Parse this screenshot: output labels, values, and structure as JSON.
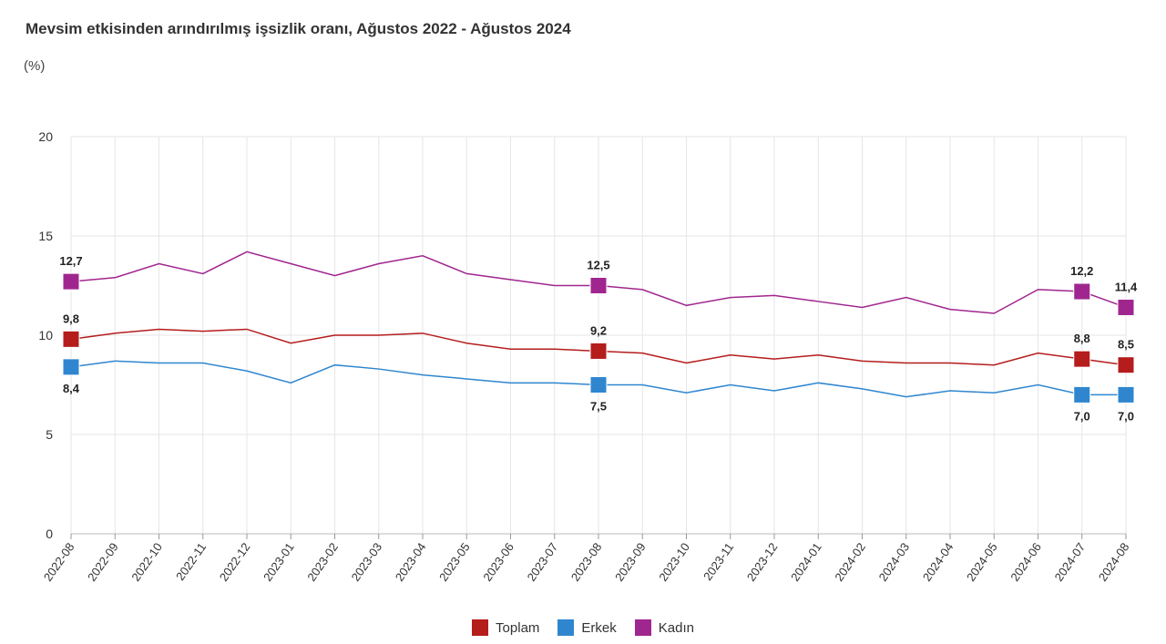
{
  "chart_data": {
    "type": "line",
    "title": "Mevsim etkisinden arındırılmış işsizlik oranı, Ağustos 2022 - Ağustos 2024",
    "subtitle": "(%)",
    "xlabel": "",
    "ylabel": "",
    "ylim": [
      0,
      20
    ],
    "yticks": [
      "0",
      "5",
      "10",
      "15",
      "20"
    ],
    "grid": true,
    "legend_position": "bottom",
    "categories": [
      "2022-08",
      "2022-09",
      "2022-10",
      "2022-11",
      "2022-12",
      "2023-01",
      "2023-02",
      "2023-03",
      "2023-04",
      "2023-05",
      "2023-06",
      "2023-07",
      "2023-08",
      "2023-09",
      "2023-10",
      "2023-11",
      "2023-12",
      "2024-01",
      "2024-02",
      "2024-03",
      "2024-04",
      "2024-05",
      "2024-06",
      "2024-07",
      "2024-08"
    ],
    "series": [
      {
        "name": "Toplam",
        "color": "#b51c1c",
        "values": [
          9.8,
          10.1,
          10.3,
          10.2,
          10.3,
          9.6,
          10.0,
          10.0,
          10.1,
          9.6,
          9.3,
          9.3,
          9.2,
          9.1,
          8.6,
          9.0,
          8.8,
          9.0,
          8.7,
          8.6,
          8.6,
          8.5,
          9.1,
          8.8,
          8.5
        ],
        "labeled_points": [
          {
            "index": 0,
            "label": "9,8"
          },
          {
            "index": 12,
            "label": "9,2"
          },
          {
            "index": 23,
            "label": "8,8"
          },
          {
            "index": 24,
            "label": "8,5"
          }
        ]
      },
      {
        "name": "Erkek",
        "color": "#2f86cf",
        "values": [
          8.4,
          8.7,
          8.6,
          8.6,
          8.2,
          7.6,
          8.5,
          8.3,
          8.0,
          7.8,
          7.6,
          7.6,
          7.5,
          7.5,
          7.1,
          7.5,
          7.2,
          7.6,
          7.3,
          6.9,
          7.2,
          7.1,
          7.5,
          7.0,
          7.0
        ],
        "labeled_points": [
          {
            "index": 0,
            "label": "8,4"
          },
          {
            "index": 12,
            "label": "7,5"
          },
          {
            "index": 23,
            "label": "7,0"
          },
          {
            "index": 24,
            "label": "7,0"
          }
        ]
      },
      {
        "name": "Kadın",
        "color": "#a0268f",
        "values": [
          12.7,
          12.9,
          13.6,
          13.1,
          14.2,
          13.6,
          13.0,
          13.6,
          14.0,
          13.1,
          12.8,
          12.5,
          12.5,
          12.3,
          11.5,
          11.9,
          12.0,
          11.7,
          11.4,
          11.9,
          11.3,
          11.1,
          12.3,
          12.2,
          11.4
        ],
        "labeled_points": [
          {
            "index": 0,
            "label": "12,7"
          },
          {
            "index": 12,
            "label": "12,5"
          },
          {
            "index": 23,
            "label": "12,2"
          },
          {
            "index": 24,
            "label": "11,4"
          }
        ]
      }
    ]
  }
}
